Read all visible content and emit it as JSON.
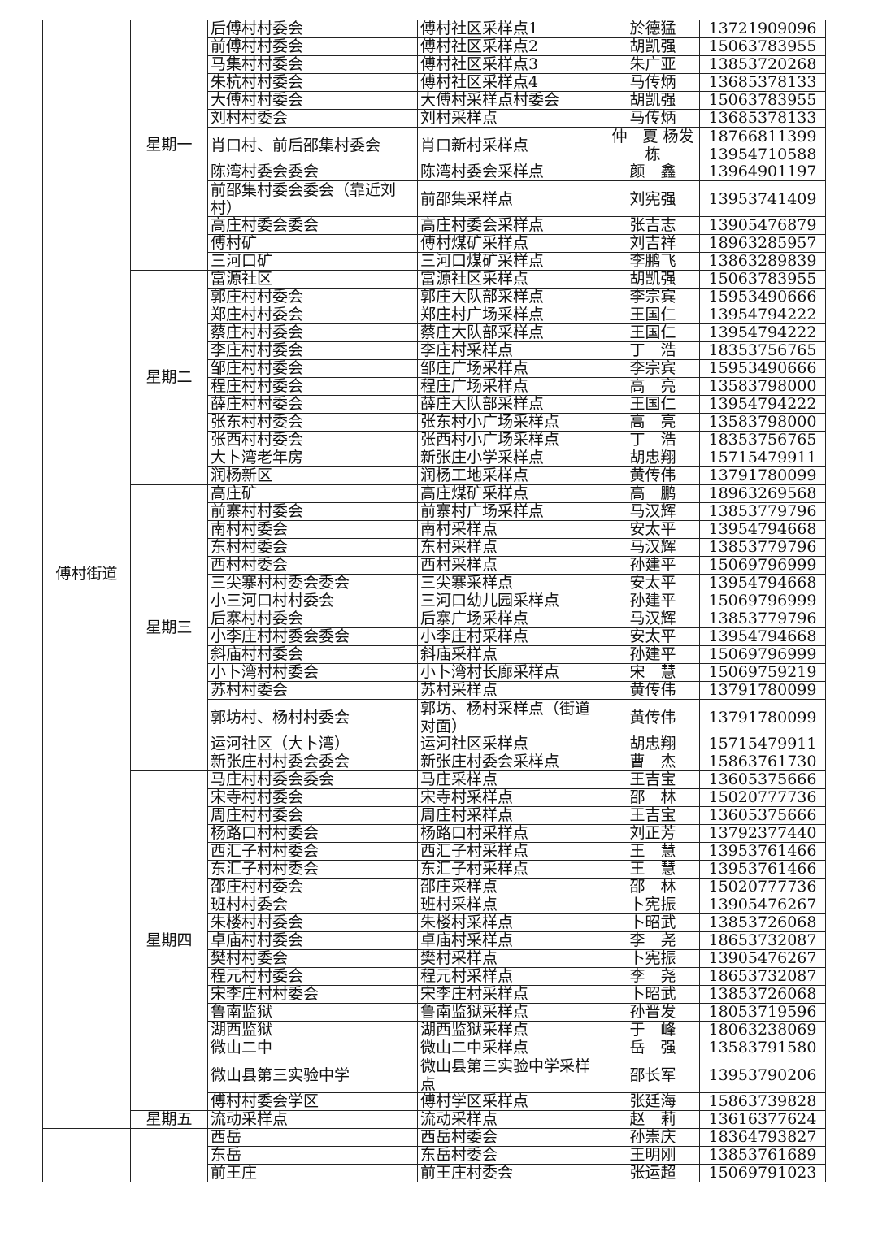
{
  "groups": [
    {
      "street": "傅村街道",
      "days": [
        {
          "label": "星期一",
          "rows": [
            [
              "后傅村村委会",
              "傅村社区采样点1",
              "於德猛",
              "13721909096"
            ],
            [
              "前傅村村委会",
              "傅村社区采样点2",
              "胡凯强",
              "15063783955"
            ],
            [
              "马集村村委会",
              "傅村社区采样点3",
              "朱广亚",
              "13853720268"
            ],
            [
              "朱杭村村委会",
              "傅村社区采样点4",
              "马传炳",
              "13685378133"
            ],
            [
              "大傅村村委会",
              "大傅村采样点村委会",
              "胡凯强",
              "15063783955"
            ],
            [
              "刘村村委会",
              "刘村采样点",
              "马传炳",
              "13685378133"
            ],
            [
              "肖口村、前后邵集村委会",
              "肖口新村采样点",
              "仲　夏 杨发栋",
              "18766811399 13954710588"
            ],
            [
              "陈湾村委会委会",
              "陈湾村委会采样点",
              "颜　鑫",
              "13964901197"
            ],
            [
              "前邵集村委会委会（靠近刘村）",
              "前邵集采样点",
              "刘宪强",
              "13953741409"
            ],
            [
              "高庄村委会委会",
              "高庄村委会采样点",
              "张吉志",
              "13905476879"
            ],
            [
              "傅村矿",
              "傅村煤矿采样点",
              "刘吉祥",
              "18963285957"
            ],
            [
              "三河口矿",
              "三河口煤矿采样点",
              "李鹏飞",
              "13863289839"
            ]
          ]
        },
        {
          "label": "星期二",
          "rows": [
            [
              "富源社区",
              "富源社区采样点",
              "胡凯强",
              "15063783955"
            ],
            [
              "郭庄村村委会",
              "郭庄大队部采样点",
              "李宗宾",
              "15953490666"
            ],
            [
              "郑庄村村委会",
              "郑庄村广场采样点",
              "王国仁",
              "13954794222"
            ],
            [
              "蔡庄村村委会",
              "蔡庄大队部采样点",
              "王国仁",
              "13954794222"
            ],
            [
              "李庄村村委会",
              "李庄村采样点",
              "丁　浩",
              "18353756765"
            ],
            [
              "邹庄村村委会",
              "邹庄广场采样点",
              "李宗宾",
              "15953490666"
            ],
            [
              "程庄村村委会",
              "程庄广场采样点",
              "高　亮",
              "13583798000"
            ],
            [
              "薛庄村村委会",
              "薛庄大队部采样点",
              "王国仁",
              "13954794222"
            ],
            [
              "张东村村委会",
              "张东村小广场采样点",
              "高　亮",
              "13583798000"
            ],
            [
              "张西村村委会",
              "张西村小广场采样点",
              "丁　浩",
              "18353756765"
            ],
            [
              "大卜湾老年房",
              "新张庄小学采样点",
              "胡忠翔",
              "15715479911"
            ],
            [
              "润杨新区",
              "润杨工地采样点",
              "黄传伟",
              "13791780099"
            ]
          ]
        },
        {
          "label": "星期三",
          "rows": [
            [
              "高庄矿",
              "高庄煤矿采样点",
              "高　鹏",
              "18963269568"
            ],
            [
              "前寨村村委会",
              "前寨村广场采样点",
              "马汉辉",
              "13853779796"
            ],
            [
              "南村村委会",
              "南村采样点",
              "安太平",
              "13954794668"
            ],
            [
              "东村村委会",
              "东村采样点",
              "马汉辉",
              "13853779796"
            ],
            [
              "西村村委会",
              "西村采样点",
              "孙建平",
              "15069796999"
            ],
            [
              "三尖寨村村委会委会",
              "三尖寨采样点",
              "安太平",
              "13954794668"
            ],
            [
              "小三河口村村委会",
              "三河口幼儿园采样点",
              "孙建平",
              "15069796999"
            ],
            [
              "后寨村村委会",
              "后寨广场采样点",
              "马汉辉",
              "13853779796"
            ],
            [
              "小李庄村村委会委会",
              "小李庄村采样点",
              "安太平",
              "13954794668"
            ],
            [
              "斜庙村村委会",
              "斜庙采样点",
              "孙建平",
              "15069796999"
            ],
            [
              "小卜湾村村委会",
              "小卜湾村长廊采样点",
              "宋　慧",
              "15069759219"
            ],
            [
              "苏村村委会",
              "苏村采样点",
              "黄传伟",
              "13791780099"
            ],
            [
              "郭坊村、杨村村委会",
              "郭坊、杨村采样点（街道对面）",
              "黄传伟",
              "13791780099"
            ],
            [
              "运河社区（大卜湾）",
              "运河社区采样点",
              "胡忠翔",
              "15715479911"
            ],
            [
              "新张庄村村委会委会",
              "新张庄村委会采样点",
              "曹　杰",
              "15863761730"
            ]
          ]
        },
        {
          "label": "星期四",
          "rows": [
            [
              "马庄村村委会委会",
              "马庄采样点",
              "王吉宝",
              "13605375666"
            ],
            [
              "宋寺村村委会",
              "宋寺村采样点",
              "邵　林",
              "15020777736"
            ],
            [
              "周庄村村委会",
              "周庄村采样点",
              "王吉宝",
              "13605375666"
            ],
            [
              "杨路口村村委会",
              "杨路口村采样点",
              "刘正芳",
              "13792377440"
            ],
            [
              "西汇子村村委会",
              "西汇子村采样点",
              "王　慧",
              "13953761466"
            ],
            [
              "东汇子村村委会",
              "东汇子村采样点",
              "王　慧",
              "13953761466"
            ],
            [
              "邵庄村村委会",
              "邵庄采样点",
              "邵　林",
              "15020777736"
            ],
            [
              "班村村委会",
              "班村采样点",
              "卜宪振",
              "13905476267"
            ],
            [
              "朱楼村村委会",
              "朱楼村采样点",
              "卜昭武",
              "13853726068"
            ],
            [
              "卓庙村村委会",
              "卓庙村采样点",
              "李　尧",
              "18653732087"
            ],
            [
              "樊村村委会",
              "樊村采样点",
              "卜宪振",
              "13905476267"
            ],
            [
              "程元村村委会",
              "程元村采样点",
              "李　尧",
              "18653732087"
            ],
            [
              "宋李庄村村委会",
              "宋李庄村采样点",
              "卜昭武",
              "13853726068"
            ],
            [
              "鲁南监狱",
              "鲁南监狱采样点",
              "孙晋发",
              "18053719596"
            ],
            [
              "湖西监狱",
              "湖西监狱采样点",
              "于　峰",
              "18063238069"
            ],
            [
              "微山二中",
              "微山二中采样点",
              "岳　强",
              "13583791580"
            ],
            [
              "微山县第三实验中学",
              "微山县第三实验中学采样点",
              "邵长军",
              "13953790206"
            ],
            [
              "傅村村委会学区",
              "傅村学区采样点",
              "张廷海",
              "15863739828"
            ]
          ]
        },
        {
          "label": "星期五",
          "rows": [
            [
              "流动采样点",
              "流动采样点",
              "赵　莉",
              "13616377624"
            ]
          ]
        }
      ]
    },
    {
      "street": "",
      "days": [
        {
          "label": "",
          "rows": [
            [
              "西岳",
              "西岳村委会",
              "孙崇庆",
              "18364793827"
            ],
            [
              "东岳",
              "东岳村委会",
              "王明刚",
              "13853761689"
            ],
            [
              "前王庄",
              "前王庄村委会",
              "张运超",
              "15069791023"
            ]
          ]
        }
      ]
    }
  ]
}
